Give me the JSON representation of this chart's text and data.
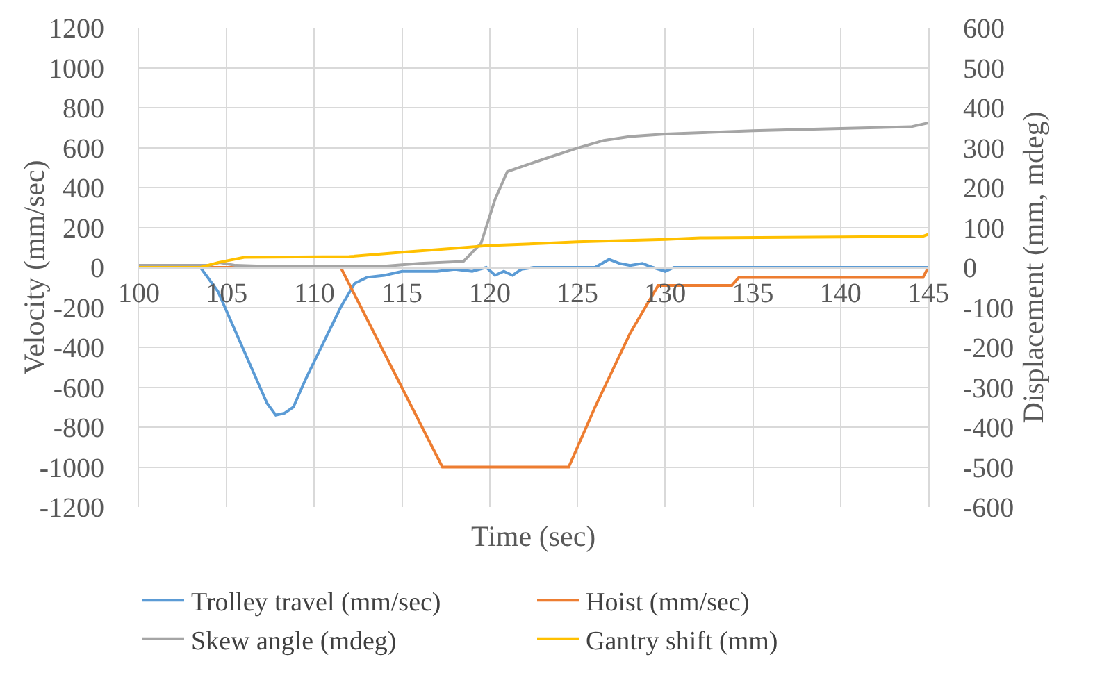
{
  "chart_data": {
    "type": "line",
    "xlabel": "Time (sec)",
    "ylabel": "Velocity (mm/sec)",
    "y2label": "Displacement (mm, mdeg)",
    "xlim": [
      100,
      145
    ],
    "xticks": [
      100,
      105,
      110,
      115,
      120,
      125,
      130,
      135,
      140,
      145
    ],
    "ylim": [
      -1200,
      1200
    ],
    "yticks": [
      -1200,
      -1000,
      -800,
      -600,
      -400,
      -200,
      0,
      200,
      400,
      600,
      800,
      1000,
      1200
    ],
    "y2lim": [
      -600,
      600
    ],
    "y2ticks": [
      -600,
      -500,
      -400,
      -300,
      -200,
      -100,
      0,
      100,
      200,
      300,
      400,
      500,
      600
    ],
    "grid": true,
    "legend": "bottom",
    "marker": "none",
    "line_style": "solid",
    "series": [
      {
        "name": "Trolley travel (mm/sec)",
        "color": "#5b9bd5",
        "x": [
          100,
          103.5,
          104.5,
          105.5,
          106.5,
          107.3,
          107.8,
          108.3,
          108.8,
          109.5,
          110.5,
          111.5,
          112.3,
          113,
          114,
          115,
          116,
          117,
          118,
          119,
          119.8,
          120.3,
          120.8,
          121.3,
          121.8,
          122.5,
          124,
          126,
          126.8,
          127.4,
          128,
          128.7,
          129.3,
          130,
          130.5,
          131,
          145
        ],
        "values": [
          0,
          0,
          -120,
          -320,
          -520,
          -680,
          -740,
          -730,
          -700,
          -560,
          -380,
          -200,
          -80,
          -50,
          -40,
          -20,
          -20,
          -20,
          -10,
          -20,
          0,
          -40,
          -20,
          -40,
          -10,
          0,
          0,
          0,
          40,
          20,
          10,
          20,
          0,
          -20,
          0,
          0,
          0
        ]
      },
      {
        "name": "Hoist (mm/sec)",
        "color": "#ed7d31",
        "x": [
          100,
          111.5,
          117.3,
          118,
          120,
          122,
          124.5,
          126,
          128,
          129.6,
          133.8,
          134.2,
          144.7,
          145
        ],
        "values": [
          0,
          0,
          -1000,
          -1000,
          -1000,
          -1000,
          -1000,
          -700,
          -330,
          -90,
          -90,
          -50,
          -50,
          0
        ]
      },
      {
        "name": "Skew angle (mdeg)",
        "color": "#a5a5a5",
        "axis": "y2",
        "x": [
          100,
          104,
          104.6,
          105.5,
          107,
          114,
          116,
          118.5,
          119.5,
          120.3,
          121,
          123,
          125,
          126.5,
          128,
          130,
          135,
          140,
          144,
          145
        ],
        "values": [
          5,
          5,
          12,
          5,
          3,
          3,
          10,
          15,
          60,
          170,
          240,
          270,
          299,
          318,
          328,
          334,
          342,
          348,
          352,
          362
        ]
      },
      {
        "name": "Gantry shift (mm)",
        "color": "#ffc000",
        "axis": "y2",
        "x": [
          100,
          103.5,
          104.5,
          106,
          112,
          115,
          118,
          120,
          123,
          125,
          130,
          132,
          140,
          144.7,
          145
        ],
        "values": [
          0,
          0,
          12,
          25,
          27,
          38,
          48,
          55,
          60,
          64,
          70,
          74,
          76,
          78,
          83
        ]
      }
    ]
  }
}
